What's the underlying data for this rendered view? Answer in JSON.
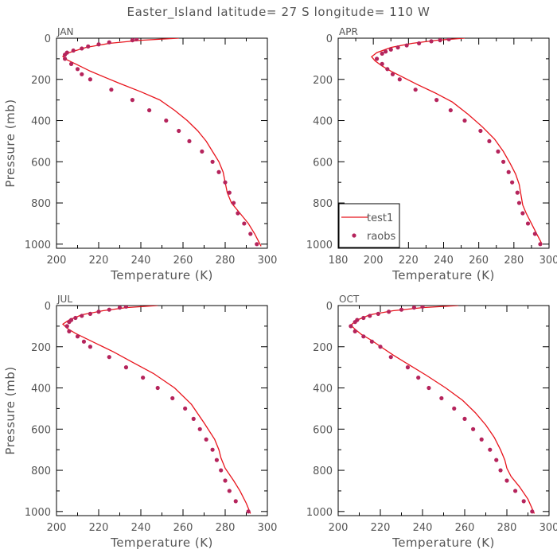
{
  "figure": {
    "title": "Easter_Island  latitude= 27 S longitude= 110 W",
    "line_color": "#e8141c",
    "marker_color": "#b5245c"
  },
  "legend": {
    "line_label": "test1",
    "marker_label": "raobs"
  },
  "chart_data": [
    {
      "type": "line",
      "panel": "JAN",
      "xlabel": "Temperature (K)",
      "ylabel": "Pressure (mb)",
      "xlim": [
        200,
        300
      ],
      "ylim": [
        1020,
        0
      ],
      "x_ticks": [
        200,
        220,
        240,
        260,
        280,
        300
      ],
      "y_ticks": [
        0,
        200,
        400,
        600,
        800,
        1000
      ],
      "series": [
        {
          "name": "test1",
          "style": "line",
          "points": [
            [
              258,
              0
            ],
            [
              240,
              10
            ],
            [
              225,
              25
            ],
            [
              214,
              45
            ],
            [
              206,
              70
            ],
            [
              203,
              88
            ],
            [
              205,
              105
            ],
            [
              210,
              130
            ],
            [
              216,
              160
            ],
            [
              223,
              190
            ],
            [
              230,
              220
            ],
            [
              240,
              260
            ],
            [
              249,
              300
            ],
            [
              256,
              350
            ],
            [
              262,
              400
            ],
            [
              267,
              450
            ],
            [
              271,
              500
            ],
            [
              274,
              550
            ],
            [
              277,
              600
            ],
            [
              279,
              650
            ],
            [
              280,
              700
            ],
            [
              281,
              750
            ],
            [
              283,
              800
            ],
            [
              287,
              850
            ],
            [
              291,
              900
            ],
            [
              294,
              950
            ],
            [
              297,
              1010
            ]
          ]
        },
        {
          "name": "raobs",
          "style": "marker",
          "points": [
            [
              238,
              5
            ],
            [
              236,
              10
            ],
            [
              225,
              20
            ],
            [
              220,
              30
            ],
            [
              215,
              40
            ],
            [
              212,
              50
            ],
            [
              208,
              60
            ],
            [
              205,
              70
            ],
            [
              204,
              80
            ],
            [
              204,
              100
            ],
            [
              207,
              125
            ],
            [
              210,
              150
            ],
            [
              212,
              175
            ],
            [
              216,
              200
            ],
            [
              226,
              250
            ],
            [
              236,
              300
            ],
            [
              244,
              350
            ],
            [
              252,
              400
            ],
            [
              258,
              450
            ],
            [
              263,
              500
            ],
            [
              269,
              550
            ],
            [
              274,
              600
            ],
            [
              277,
              650
            ],
            [
              280,
              700
            ],
            [
              282,
              750
            ],
            [
              284,
              800
            ],
            [
              286,
              850
            ],
            [
              289,
              900
            ],
            [
              292,
              950
            ],
            [
              295,
              1000
            ]
          ]
        }
      ]
    },
    {
      "type": "line",
      "panel": "APR",
      "xlabel": "Temperature (K)",
      "ylabel": "",
      "xlim": [
        180,
        300
      ],
      "ylim": [
        1020,
        0
      ],
      "x_ticks": [
        180,
        200,
        220,
        240,
        260,
        280,
        300
      ],
      "y_ticks": [
        0,
        200,
        400,
        600,
        800,
        1000
      ],
      "series": [
        {
          "name": "test1",
          "style": "line",
          "points": [
            [
              252,
              0
            ],
            [
              236,
              10
            ],
            [
              222,
              25
            ],
            [
              210,
              45
            ],
            [
              202,
              70
            ],
            [
              199,
              90
            ],
            [
              201,
              110
            ],
            [
              205,
              135
            ],
            [
              210,
              160
            ],
            [
              217,
              190
            ],
            [
              225,
              225
            ],
            [
              235,
              265
            ],
            [
              245,
              310
            ],
            [
              254,
              370
            ],
            [
              262,
              430
            ],
            [
              269,
              490
            ],
            [
              274,
              550
            ],
            [
              278,
              610
            ],
            [
              281,
              660
            ],
            [
              283,
              710
            ],
            [
              284,
              760
            ],
            [
              285,
              810
            ],
            [
              287,
              850
            ],
            [
              290,
              900
            ],
            [
              293,
              950
            ],
            [
              296,
              1000
            ]
          ]
        },
        {
          "name": "raobs",
          "style": "marker",
          "points": [
            [
              243,
              5
            ],
            [
              238,
              10
            ],
            [
              233,
              15
            ],
            [
              226,
              25
            ],
            [
              219,
              35
            ],
            [
              214,
              45
            ],
            [
              210,
              55
            ],
            [
              207,
              65
            ],
            [
              205,
              75
            ],
            [
              202,
              100
            ],
            [
              205,
              125
            ],
            [
              208,
              150
            ],
            [
              211,
              175
            ],
            [
              215,
              200
            ],
            [
              224,
              250
            ],
            [
              236,
              300
            ],
            [
              244,
              350
            ],
            [
              252,
              400
            ],
            [
              261,
              450
            ],
            [
              266,
              500
            ],
            [
              271,
              550
            ],
            [
              274,
              600
            ],
            [
              277,
              650
            ],
            [
              279,
              700
            ],
            [
              282,
              750
            ],
            [
              283,
              800
            ],
            [
              285,
              850
            ],
            [
              288,
              900
            ],
            [
              292,
              950
            ],
            [
              295,
              1000
            ]
          ]
        }
      ]
    },
    {
      "type": "line",
      "panel": "JUL",
      "xlabel": "Temperature (K)",
      "ylabel": "Pressure (mb)",
      "xlim": [
        200,
        300
      ],
      "ylim": [
        1020,
        0
      ],
      "x_ticks": [
        200,
        220,
        240,
        260,
        280,
        300
      ],
      "y_ticks": [
        0,
        200,
        400,
        600,
        800,
        1000
      ],
      "series": [
        {
          "name": "test1",
          "style": "line",
          "points": [
            [
              248,
              0
            ],
            [
              233,
              10
            ],
            [
              222,
              25
            ],
            [
              212,
              45
            ],
            [
              206,
              70
            ],
            [
              203,
              90
            ],
            [
              205,
              110
            ],
            [
              209,
              135
            ],
            [
              214,
              160
            ],
            [
              220,
              190
            ],
            [
              227,
              225
            ],
            [
              236,
              275
            ],
            [
              246,
              330
            ],
            [
              256,
              400
            ],
            [
              264,
              480
            ],
            [
              270,
              570
            ],
            [
              275,
              650
            ],
            [
              277,
              700
            ],
            [
              278,
              740
            ],
            [
              280,
              790
            ],
            [
              284,
              850
            ],
            [
              287,
              900
            ],
            [
              290,
              960
            ],
            [
              292,
              1010
            ]
          ]
        },
        {
          "name": "raobs",
          "style": "marker",
          "points": [
            [
              233,
              5
            ],
            [
              230,
              10
            ],
            [
              225,
              20
            ],
            [
              220,
              30
            ],
            [
              216,
              40
            ],
            [
              212,
              50
            ],
            [
              209,
              60
            ],
            [
              207,
              70
            ],
            [
              206,
              80
            ],
            [
              205,
              100
            ],
            [
              206,
              125
            ],
            [
              210,
              150
            ],
            [
              213,
              175
            ],
            [
              216,
              200
            ],
            [
              225,
              250
            ],
            [
              233,
              300
            ],
            [
              241,
              350
            ],
            [
              248,
              400
            ],
            [
              255,
              450
            ],
            [
              261,
              500
            ],
            [
              265,
              550
            ],
            [
              268,
              600
            ],
            [
              271,
              650
            ],
            [
              274,
              700
            ],
            [
              276,
              750
            ],
            [
              278,
              800
            ],
            [
              280,
              850
            ],
            [
              282,
              900
            ],
            [
              285,
              950
            ],
            [
              291,
              1000
            ]
          ]
        }
      ]
    },
    {
      "type": "line",
      "panel": "OCT",
      "xlabel": "Temperature (K)",
      "ylabel": "",
      "xlim": [
        200,
        300
      ],
      "ylim": [
        1020,
        0
      ],
      "x_ticks": [
        200,
        220,
        240,
        260,
        280,
        300
      ],
      "y_ticks": [
        0,
        200,
        400,
        600,
        800,
        1000
      ],
      "series": [
        {
          "name": "test1",
          "style": "line",
          "points": [
            [
              257,
              0
            ],
            [
              240,
              10
            ],
            [
              226,
              25
            ],
            [
              215,
              45
            ],
            [
              209,
              70
            ],
            [
              206,
              95
            ],
            [
              208,
              115
            ],
            [
              211,
              140
            ],
            [
              216,
              170
            ],
            [
              221,
              205
            ],
            [
              226,
              240
            ],
            [
              234,
              290
            ],
            [
              242,
              340
            ],
            [
              251,
              400
            ],
            [
              259,
              460
            ],
            [
              265,
              520
            ],
            [
              270,
              580
            ],
            [
              274,
              640
            ],
            [
              277,
              700
            ],
            [
              279,
              750
            ],
            [
              280,
              790
            ],
            [
              282,
              830
            ],
            [
              286,
              880
            ],
            [
              290,
              940
            ],
            [
              293,
              1010
            ]
          ]
        },
        {
          "name": "raobs",
          "style": "marker",
          "points": [
            [
              240,
              5
            ],
            [
              236,
              10
            ],
            [
              230,
              20
            ],
            [
              224,
              30
            ],
            [
              219,
              40
            ],
            [
              215,
              50
            ],
            [
              212,
              60
            ],
            [
              209,
              70
            ],
            [
              208,
              80
            ],
            [
              206,
              100
            ],
            [
              208,
              125
            ],
            [
              212,
              150
            ],
            [
              216,
              175
            ],
            [
              220,
              200
            ],
            [
              225,
              250
            ],
            [
              233,
              300
            ],
            [
              238,
              350
            ],
            [
              243,
              400
            ],
            [
              249,
              450
            ],
            [
              255,
              500
            ],
            [
              260,
              550
            ],
            [
              264,
              600
            ],
            [
              268,
              650
            ],
            [
              272,
              700
            ],
            [
              275,
              750
            ],
            [
              277,
              800
            ],
            [
              280,
              850
            ],
            [
              284,
              900
            ],
            [
              288,
              950
            ],
            [
              292,
              1000
            ]
          ]
        }
      ]
    }
  ]
}
